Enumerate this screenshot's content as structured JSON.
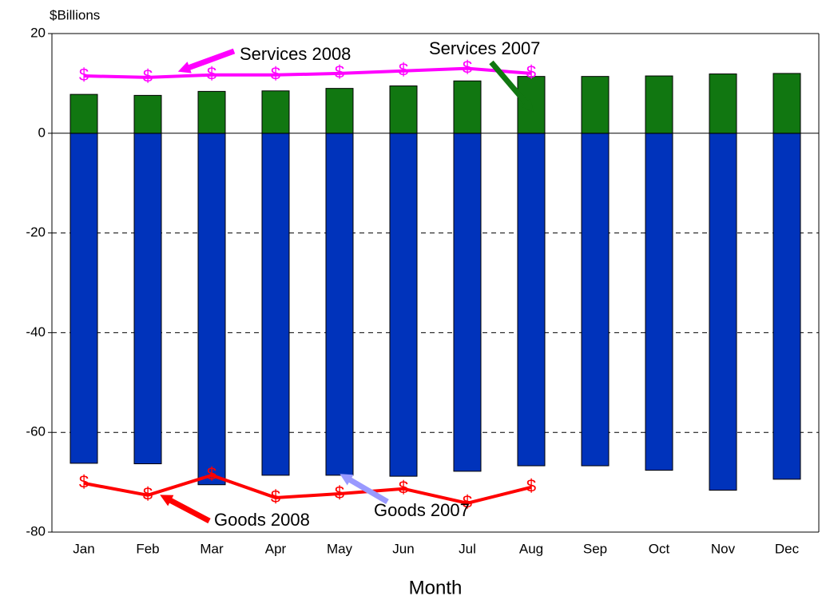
{
  "chart_data": {
    "type": "bar",
    "ylabel": "$Billions",
    "xlabel": "Month",
    "categories": [
      "Jan",
      "Feb",
      "Mar",
      "Apr",
      "May",
      "Jun",
      "Jul",
      "Aug",
      "Sep",
      "Oct",
      "Nov",
      "Dec"
    ],
    "series": [
      {
        "name": "Goods 2007",
        "type": "bar",
        "color": "#0033bb",
        "values": [
          -66.2,
          -66.3,
          -70.5,
          -68.6,
          -68.6,
          -68.8,
          -67.8,
          -66.7,
          -66.7,
          -67.6,
          -71.6,
          -69.4
        ]
      },
      {
        "name": "Services 2007",
        "type": "bar",
        "color": "#117711",
        "values": [
          7.8,
          7.6,
          8.4,
          8.5,
          9.0,
          9.5,
          10.5,
          11.4,
          11.4,
          11.5,
          11.9,
          12.0
        ]
      },
      {
        "name": "Goods 2008",
        "type": "line",
        "color": "#ff0000",
        "marker": "$",
        "values": [
          -70.2,
          -72.6,
          -68.6,
          -73.1,
          -72.3,
          -71.3,
          -74.2,
          -71.0,
          null,
          null,
          null,
          null
        ]
      },
      {
        "name": "Services 2008",
        "type": "line",
        "color": "#ff00ff",
        "marker": "$",
        "values": [
          11.5,
          11.2,
          11.7,
          11.7,
          12.0,
          12.5,
          13.0,
          12.0,
          null,
          null,
          null,
          null
        ]
      }
    ],
    "ylim": [
      -80,
      20
    ],
    "yticks": [
      -80,
      -60,
      -40,
      -20,
      0,
      20
    ],
    "grid": true
  }
}
